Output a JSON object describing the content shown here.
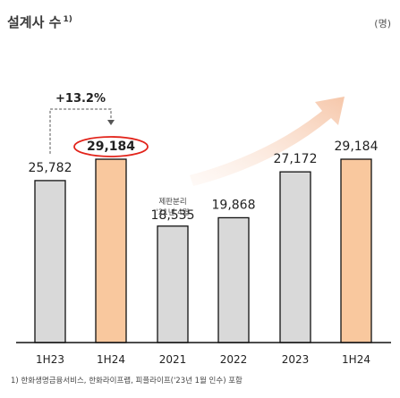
{
  "header": {
    "title": "설계사 수",
    "title_sup": "1)",
    "unit": "(명)"
  },
  "colors": {
    "gray_bar": "#d9d9d9",
    "orange_bar": "#f9c89e",
    "bar_stroke": "#111111",
    "highlight_ellipse": "#e2231a",
    "arrow": "#f8d7c3",
    "title_rule": "#f3c7ab"
  },
  "chart_data": {
    "type": "bar",
    "categories": [
      "1H23",
      "1H24",
      "2021",
      "2022",
      "2023",
      "1H24"
    ],
    "values": [
      25782,
      29184,
      18535,
      19868,
      27172,
      29184
    ],
    "value_labels": [
      "25,782",
      "29,184",
      "18,535",
      "19,868",
      "27,172",
      "29,184"
    ],
    "bar_colors": [
      "gray",
      "orange",
      "gray",
      "gray",
      "gray",
      "orange"
    ],
    "annotations": {
      "growth": {
        "text": "+13.2%",
        "from_index": 0,
        "to_index": 1
      },
      "circled_index": 1,
      "bar_note": {
        "index": 2,
        "lines": [
          "제판분리",
          "'21년 4월"
        ]
      },
      "trend_arrow": "up-right"
    },
    "xlabel": "",
    "ylabel": ""
  },
  "footnote": "1) 한화생명금융서비스, 한화라이프랩, 피플라이프('23년 1월 인수) 포함"
}
